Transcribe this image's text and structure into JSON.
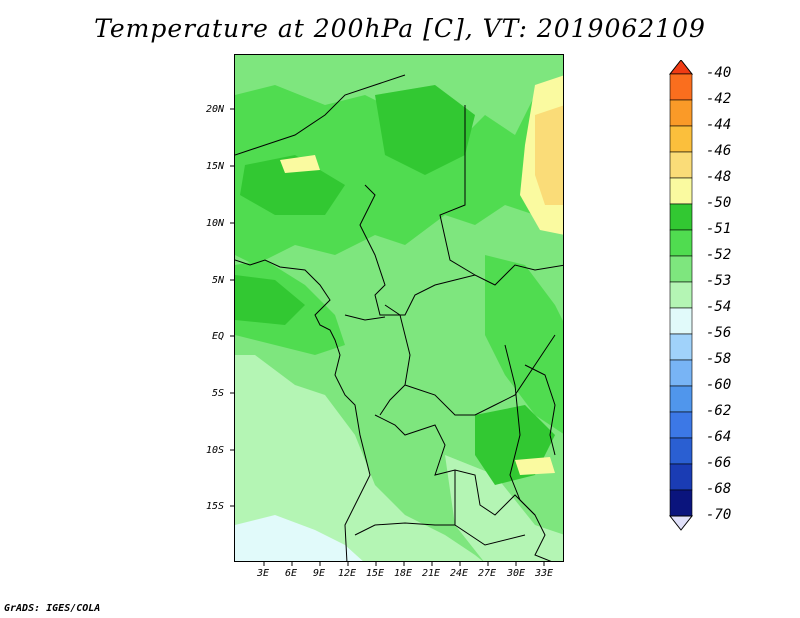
{
  "title": "Temperature at 200hPa [C], VT: 2019062109",
  "credit": "GrADS: IGES/COLA",
  "map": {
    "lat_labels": [
      "20N",
      "15N",
      "10N",
      "5N",
      "EQ",
      "5S",
      "10S",
      "15S"
    ],
    "lon_labels": [
      "3E",
      "6E",
      "9E",
      "12E",
      "15E",
      "18E",
      "21E",
      "24E",
      "27E",
      "30E",
      "33E"
    ]
  },
  "colorbar": {
    "labels": [
      "-40",
      "-42",
      "-44",
      "-46",
      "-48",
      "-50",
      "-51",
      "-52",
      "-53",
      "-54",
      "-56",
      "-58",
      "-60",
      "-62",
      "-64",
      "-66",
      "-68",
      "-70"
    ],
    "colors": [
      "#f03c14",
      "#fa6e1e",
      "#fa9a28",
      "#fbbf3c",
      "#fadc78",
      "#fafaa0",
      "#32c832",
      "#50dc50",
      "#7ee67e",
      "#b4f5b4",
      "#e1fafa",
      "#a0d2fa",
      "#78b4f5",
      "#5096ec",
      "#3c78e6",
      "#2a5fd2",
      "#1a3cb4",
      "#0a147d",
      "#e1e1fa"
    ]
  },
  "colors": {
    "light_green": "#b4f5b4",
    "mid_green": "#7ee67e",
    "green": "#50dc50",
    "dark_green": "#32c832",
    "pale_cyan": "#e1fafa",
    "pale_yellow": "#fafaa0",
    "tan": "#fadc78"
  }
}
